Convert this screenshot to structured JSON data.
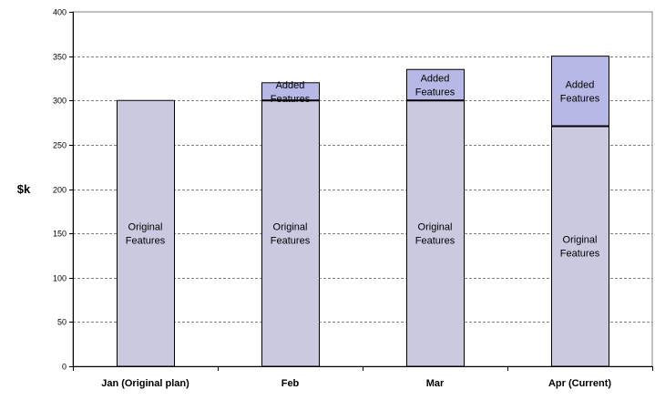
{
  "chart_data": {
    "type": "bar",
    "stacked": true,
    "title": "",
    "xlabel": "",
    "ylabel": "$k",
    "ylim": [
      0,
      400
    ],
    "y_ticks": [
      "0",
      "50",
      "100",
      "150",
      "200",
      "250",
      "300",
      "350",
      "400"
    ],
    "grid": "horizontal dashed",
    "legend": "none",
    "categories": [
      "Jan (Original plan)",
      "Feb",
      "Mar",
      "Apr (Current)"
    ],
    "series": [
      {
        "name": "Original Features",
        "values": [
          300,
          300,
          300,
          271
        ],
        "color": "#c9c9e0",
        "label_lines": [
          "Original",
          "Features"
        ]
      },
      {
        "name": "Added Features",
        "values": [
          0,
          20,
          35,
          79
        ],
        "color": "#b8b8e6",
        "label_lines": [
          "Added",
          "Features"
        ]
      }
    ]
  }
}
